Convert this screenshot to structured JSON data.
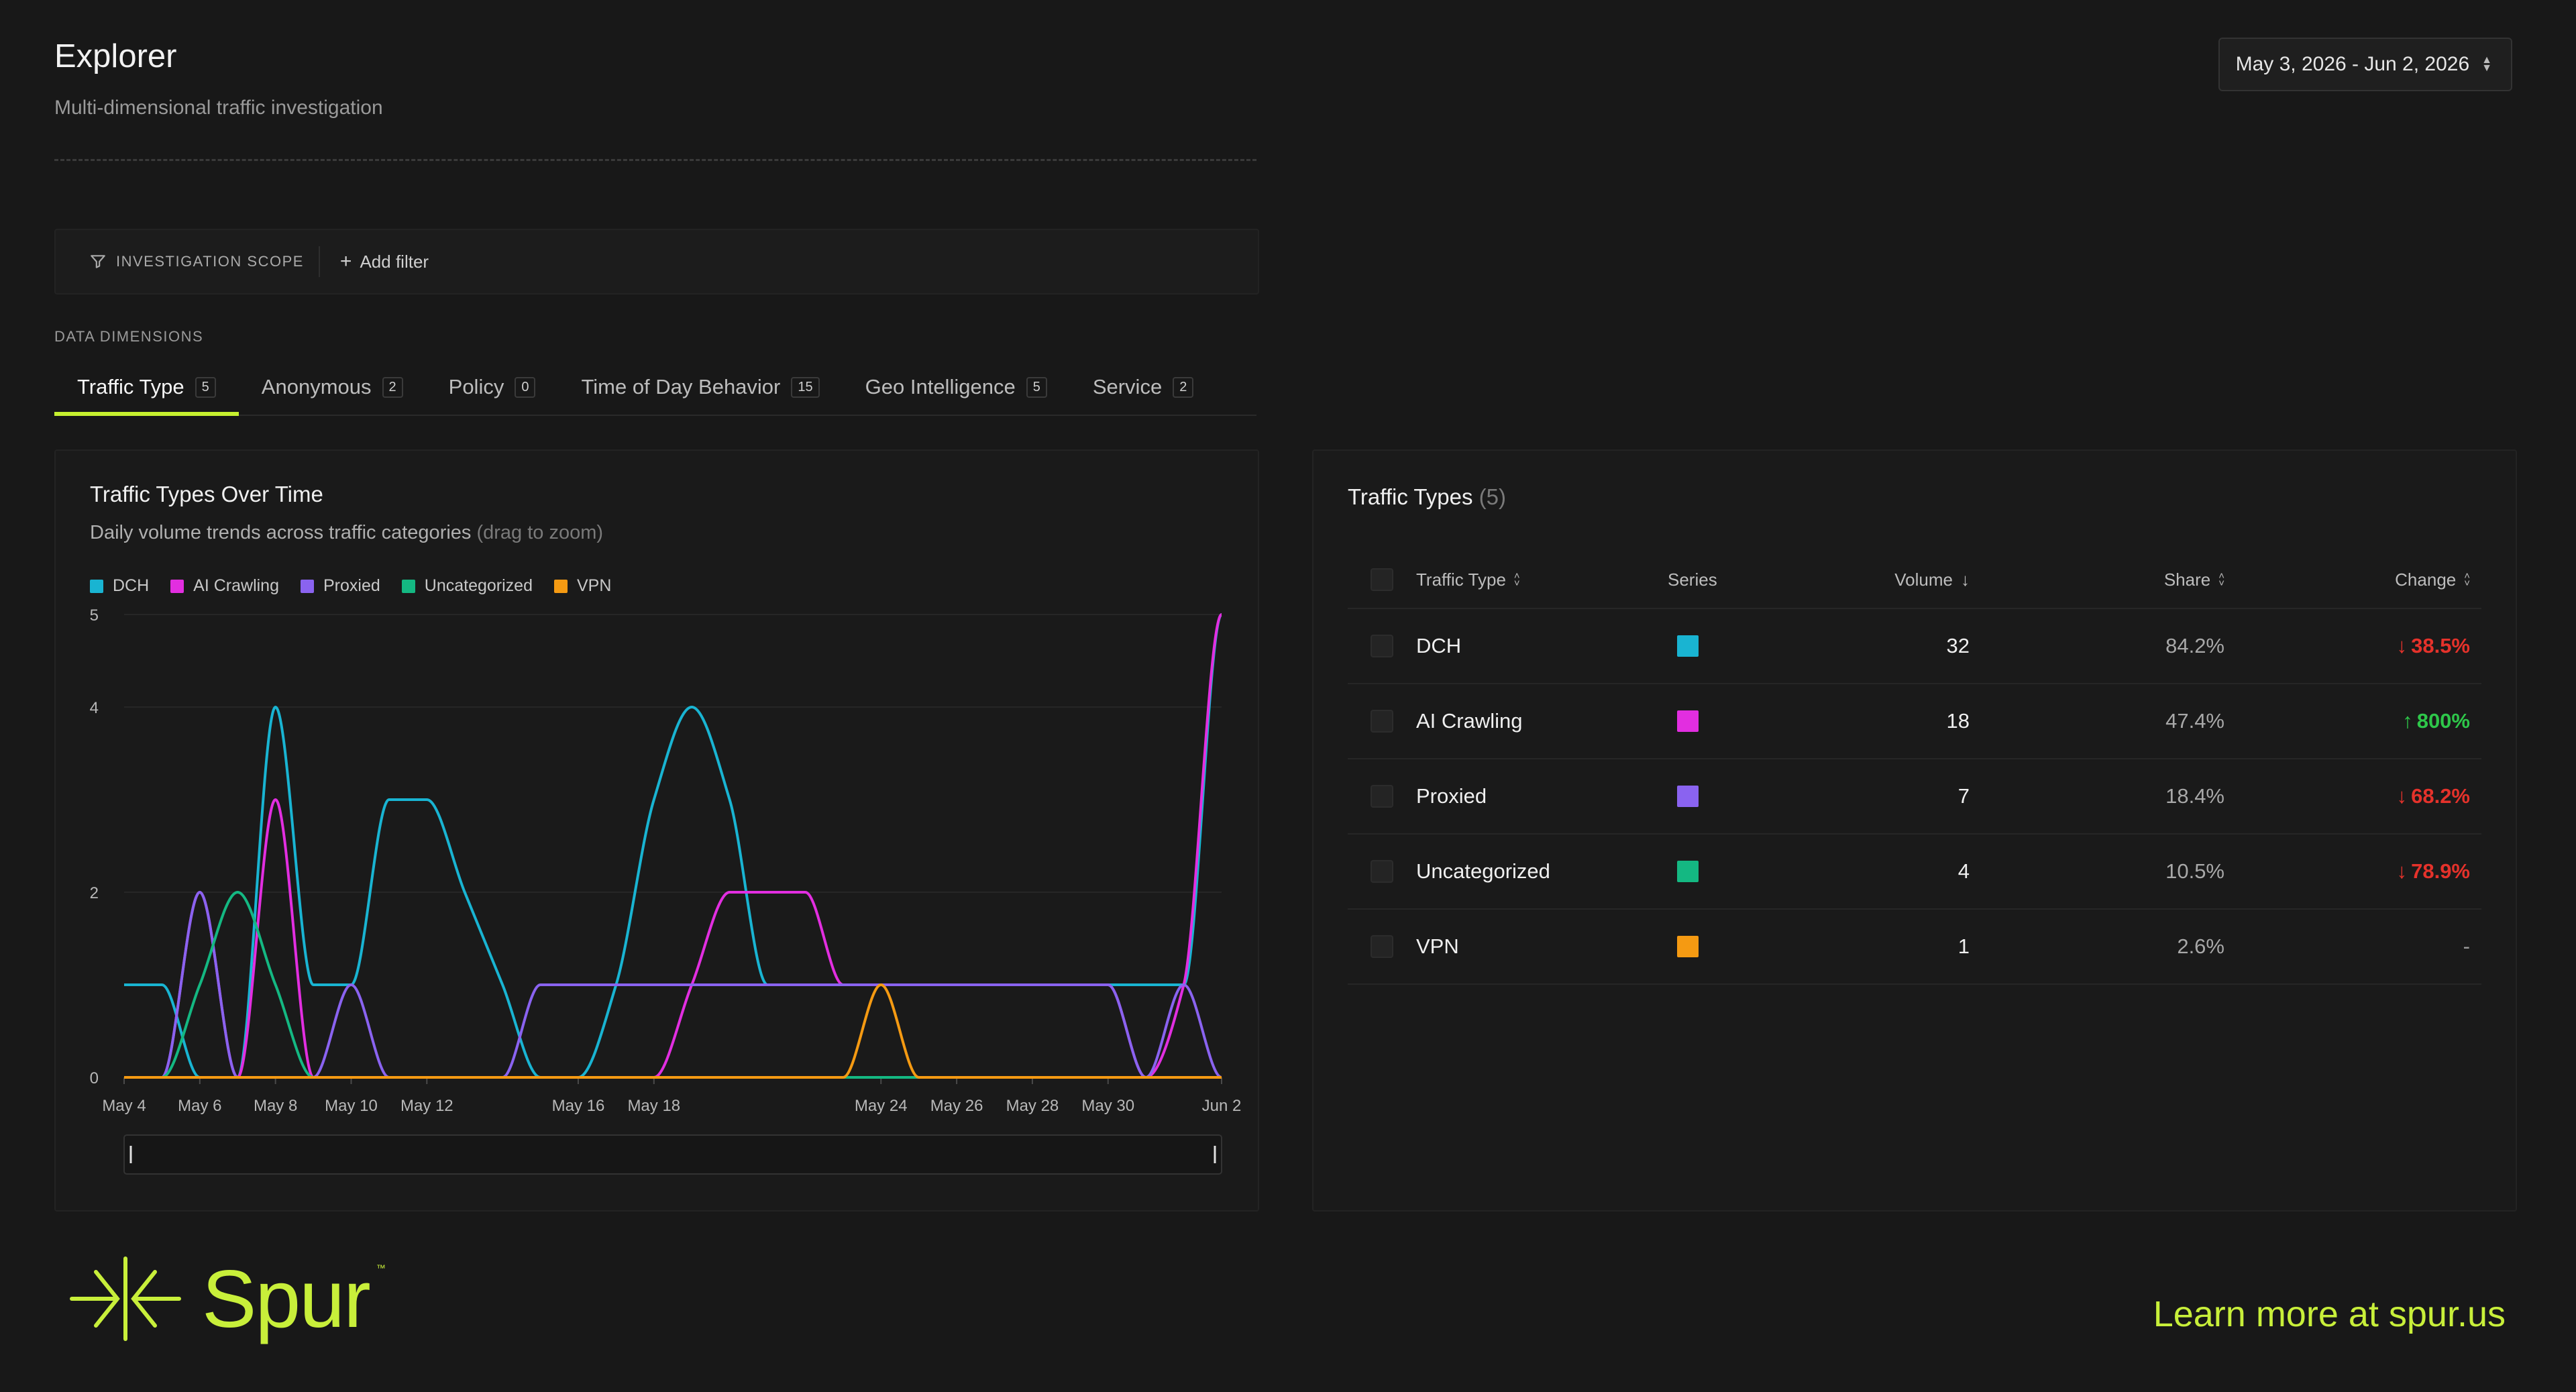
{
  "header": {
    "title": "Explorer",
    "subtitle": "Multi-dimensional traffic investigation",
    "date_range": "May 3, 2026 - Jun 2, 2026"
  },
  "scope": {
    "label": "INVESTIGATION SCOPE",
    "add_filter": "Add filter"
  },
  "dimensions": {
    "label": "DATA DIMENSIONS",
    "tabs": [
      {
        "label": "Traffic Type",
        "count": "5",
        "active": true
      },
      {
        "label": "Anonymous",
        "count": "2"
      },
      {
        "label": "Policy",
        "count": "0"
      },
      {
        "label": "Time of Day Behavior",
        "count": "15"
      },
      {
        "label": "Geo Intelligence",
        "count": "5"
      },
      {
        "label": "Service",
        "count": "2"
      }
    ]
  },
  "chart": {
    "title": "Traffic Types Over Time",
    "subtitle": "Daily volume trends across traffic categories",
    "subtitle_hint": "(drag to zoom)"
  },
  "chart_data": {
    "type": "line",
    "title": "Traffic Types Over Time",
    "x": [
      "May 4",
      "May 5",
      "May 6",
      "May 7",
      "May 8",
      "May 9",
      "May 10",
      "May 11",
      "May 12",
      "May 13",
      "May 14",
      "May 15",
      "May 16",
      "May 17",
      "May 18",
      "May 19",
      "May 20",
      "May 21",
      "May 22",
      "May 23",
      "May 24",
      "May 25",
      "May 26",
      "May 27",
      "May 28",
      "May 29",
      "May 30",
      "May 31",
      "Jun 1",
      "Jun 2"
    ],
    "x_tick_labels": [
      "May 4",
      "May 6",
      "May 8",
      "May 10",
      "May 12",
      "May 16",
      "May 18",
      "May 24",
      "May 26",
      "May 28",
      "May 30",
      "Jun 2"
    ],
    "y_ticks": [
      0,
      2,
      4,
      5
    ],
    "ylim": [
      0,
      5
    ],
    "legend_position": "top-left",
    "series": [
      {
        "name": "DCH",
        "color": "#19b4d2",
        "values": [
          1,
          1,
          0,
          0,
          4,
          1,
          1,
          3,
          3,
          2,
          1,
          0,
          0,
          1,
          3,
          4,
          3,
          1,
          1,
          1,
          1,
          1,
          1,
          1,
          1,
          1,
          1,
          1,
          1,
          5
        ]
      },
      {
        "name": "AI Crawling",
        "color": "#e22ee0",
        "values": [
          0,
          0,
          2,
          0,
          3,
          0,
          0,
          0,
          0,
          0,
          0,
          0,
          0,
          0,
          0,
          1,
          2,
          2,
          2,
          1,
          1,
          1,
          1,
          1,
          1,
          1,
          1,
          0,
          1,
          5
        ]
      },
      {
        "name": "Proxied",
        "color": "#8a63f0",
        "values": [
          0,
          0,
          2,
          0,
          0,
          0,
          1,
          0,
          0,
          0,
          0,
          1,
          1,
          1,
          1,
          1,
          1,
          1,
          1,
          1,
          1,
          1,
          1,
          1,
          1,
          1,
          1,
          0,
          1,
          0
        ]
      },
      {
        "name": "Uncategorized",
        "color": "#14b882",
        "values": [
          0,
          0,
          1,
          2,
          1,
          0,
          0,
          0,
          0,
          0,
          0,
          0,
          0,
          0,
          0,
          0,
          0,
          0,
          0,
          0,
          0,
          0,
          0,
          0,
          0,
          0,
          0,
          0,
          0,
          0
        ]
      },
      {
        "name": "VPN",
        "color": "#f59a12",
        "values": [
          0,
          0,
          0,
          0,
          0,
          0,
          0,
          0,
          0,
          0,
          0,
          0,
          0,
          0,
          0,
          0,
          0,
          0,
          0,
          0,
          1,
          0,
          0,
          0,
          0,
          0,
          0,
          0,
          0,
          0
        ]
      }
    ]
  },
  "table": {
    "title": "Traffic Types",
    "count": "(5)",
    "headers": {
      "type": "Traffic Type",
      "series": "Series",
      "volume": "Volume",
      "share": "Share",
      "change": "Change"
    },
    "rows": [
      {
        "type": "DCH",
        "color": "#19b4d2",
        "volume": "32",
        "share": "84.2%",
        "change": "38.5%",
        "direction": "down"
      },
      {
        "type": "AI Crawling",
        "color": "#e22ee0",
        "volume": "18",
        "share": "47.4%",
        "change": "800%",
        "direction": "up"
      },
      {
        "type": "Proxied",
        "color": "#8a63f0",
        "volume": "7",
        "share": "18.4%",
        "change": "68.2%",
        "direction": "down"
      },
      {
        "type": "Uncategorized",
        "color": "#14b882",
        "volume": "4",
        "share": "10.5%",
        "change": "78.9%",
        "direction": "down"
      },
      {
        "type": "VPN",
        "color": "#f59a12",
        "volume": "1",
        "share": "2.6%",
        "change": "-",
        "direction": "none"
      }
    ]
  },
  "footer": {
    "logo": "Spur",
    "trademark": "™",
    "learn_more": "Learn more at spur.us"
  },
  "colors": {
    "accent": "#c6f02f",
    "down": "#e5322b",
    "up": "#2ec74a"
  }
}
